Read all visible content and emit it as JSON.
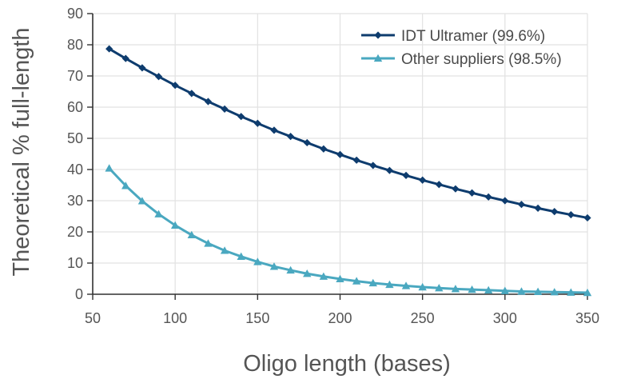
{
  "chart_data": {
    "type": "line",
    "title": "",
    "xlabel": "Oligo length (bases)",
    "ylabel": "Theoretical % full-length",
    "xlim": [
      50,
      350
    ],
    "ylim": [
      0,
      90
    ],
    "x_ticks": [
      50,
      100,
      150,
      200,
      250,
      300,
      350
    ],
    "y_ticks": [
      0,
      10,
      20,
      30,
      40,
      50,
      60,
      70,
      80,
      90
    ],
    "grid": "vertical and horizontal",
    "legend_position": "top-right",
    "x": [
      60,
      70,
      80,
      90,
      100,
      110,
      120,
      130,
      140,
      150,
      160,
      170,
      180,
      190,
      200,
      210,
      220,
      230,
      240,
      250,
      260,
      270,
      280,
      290,
      300,
      310,
      320,
      330,
      340,
      350
    ],
    "series": [
      {
        "name": "IDT Ultramer (99.6%)",
        "color": "#0e3c6e",
        "marker": "diamond",
        "values": [
          78.7,
          75.6,
          72.6,
          69.8,
          67.0,
          64.4,
          61.8,
          59.4,
          57.0,
          54.8,
          52.6,
          50.6,
          48.6,
          46.6,
          44.8,
          43.0,
          41.3,
          39.7,
          38.1,
          36.6,
          35.2,
          33.8,
          32.5,
          31.2,
          30.0,
          28.8,
          27.6,
          26.5,
          25.5,
          24.5
        ]
      },
      {
        "name": "Other suppliers (98.5%)",
        "color": "#4aa8c0",
        "marker": "triangle",
        "values": [
          40.4,
          34.8,
          29.9,
          25.7,
          22.1,
          19.0,
          16.3,
          14.0,
          12.1,
          10.4,
          8.9,
          7.7,
          6.6,
          5.7,
          4.9,
          4.2,
          3.6,
          3.1,
          2.7,
          2.3,
          2.0,
          1.7,
          1.5,
          1.3,
          1.1,
          0.9,
          0.8,
          0.7,
          0.6,
          0.5
        ]
      }
    ]
  }
}
